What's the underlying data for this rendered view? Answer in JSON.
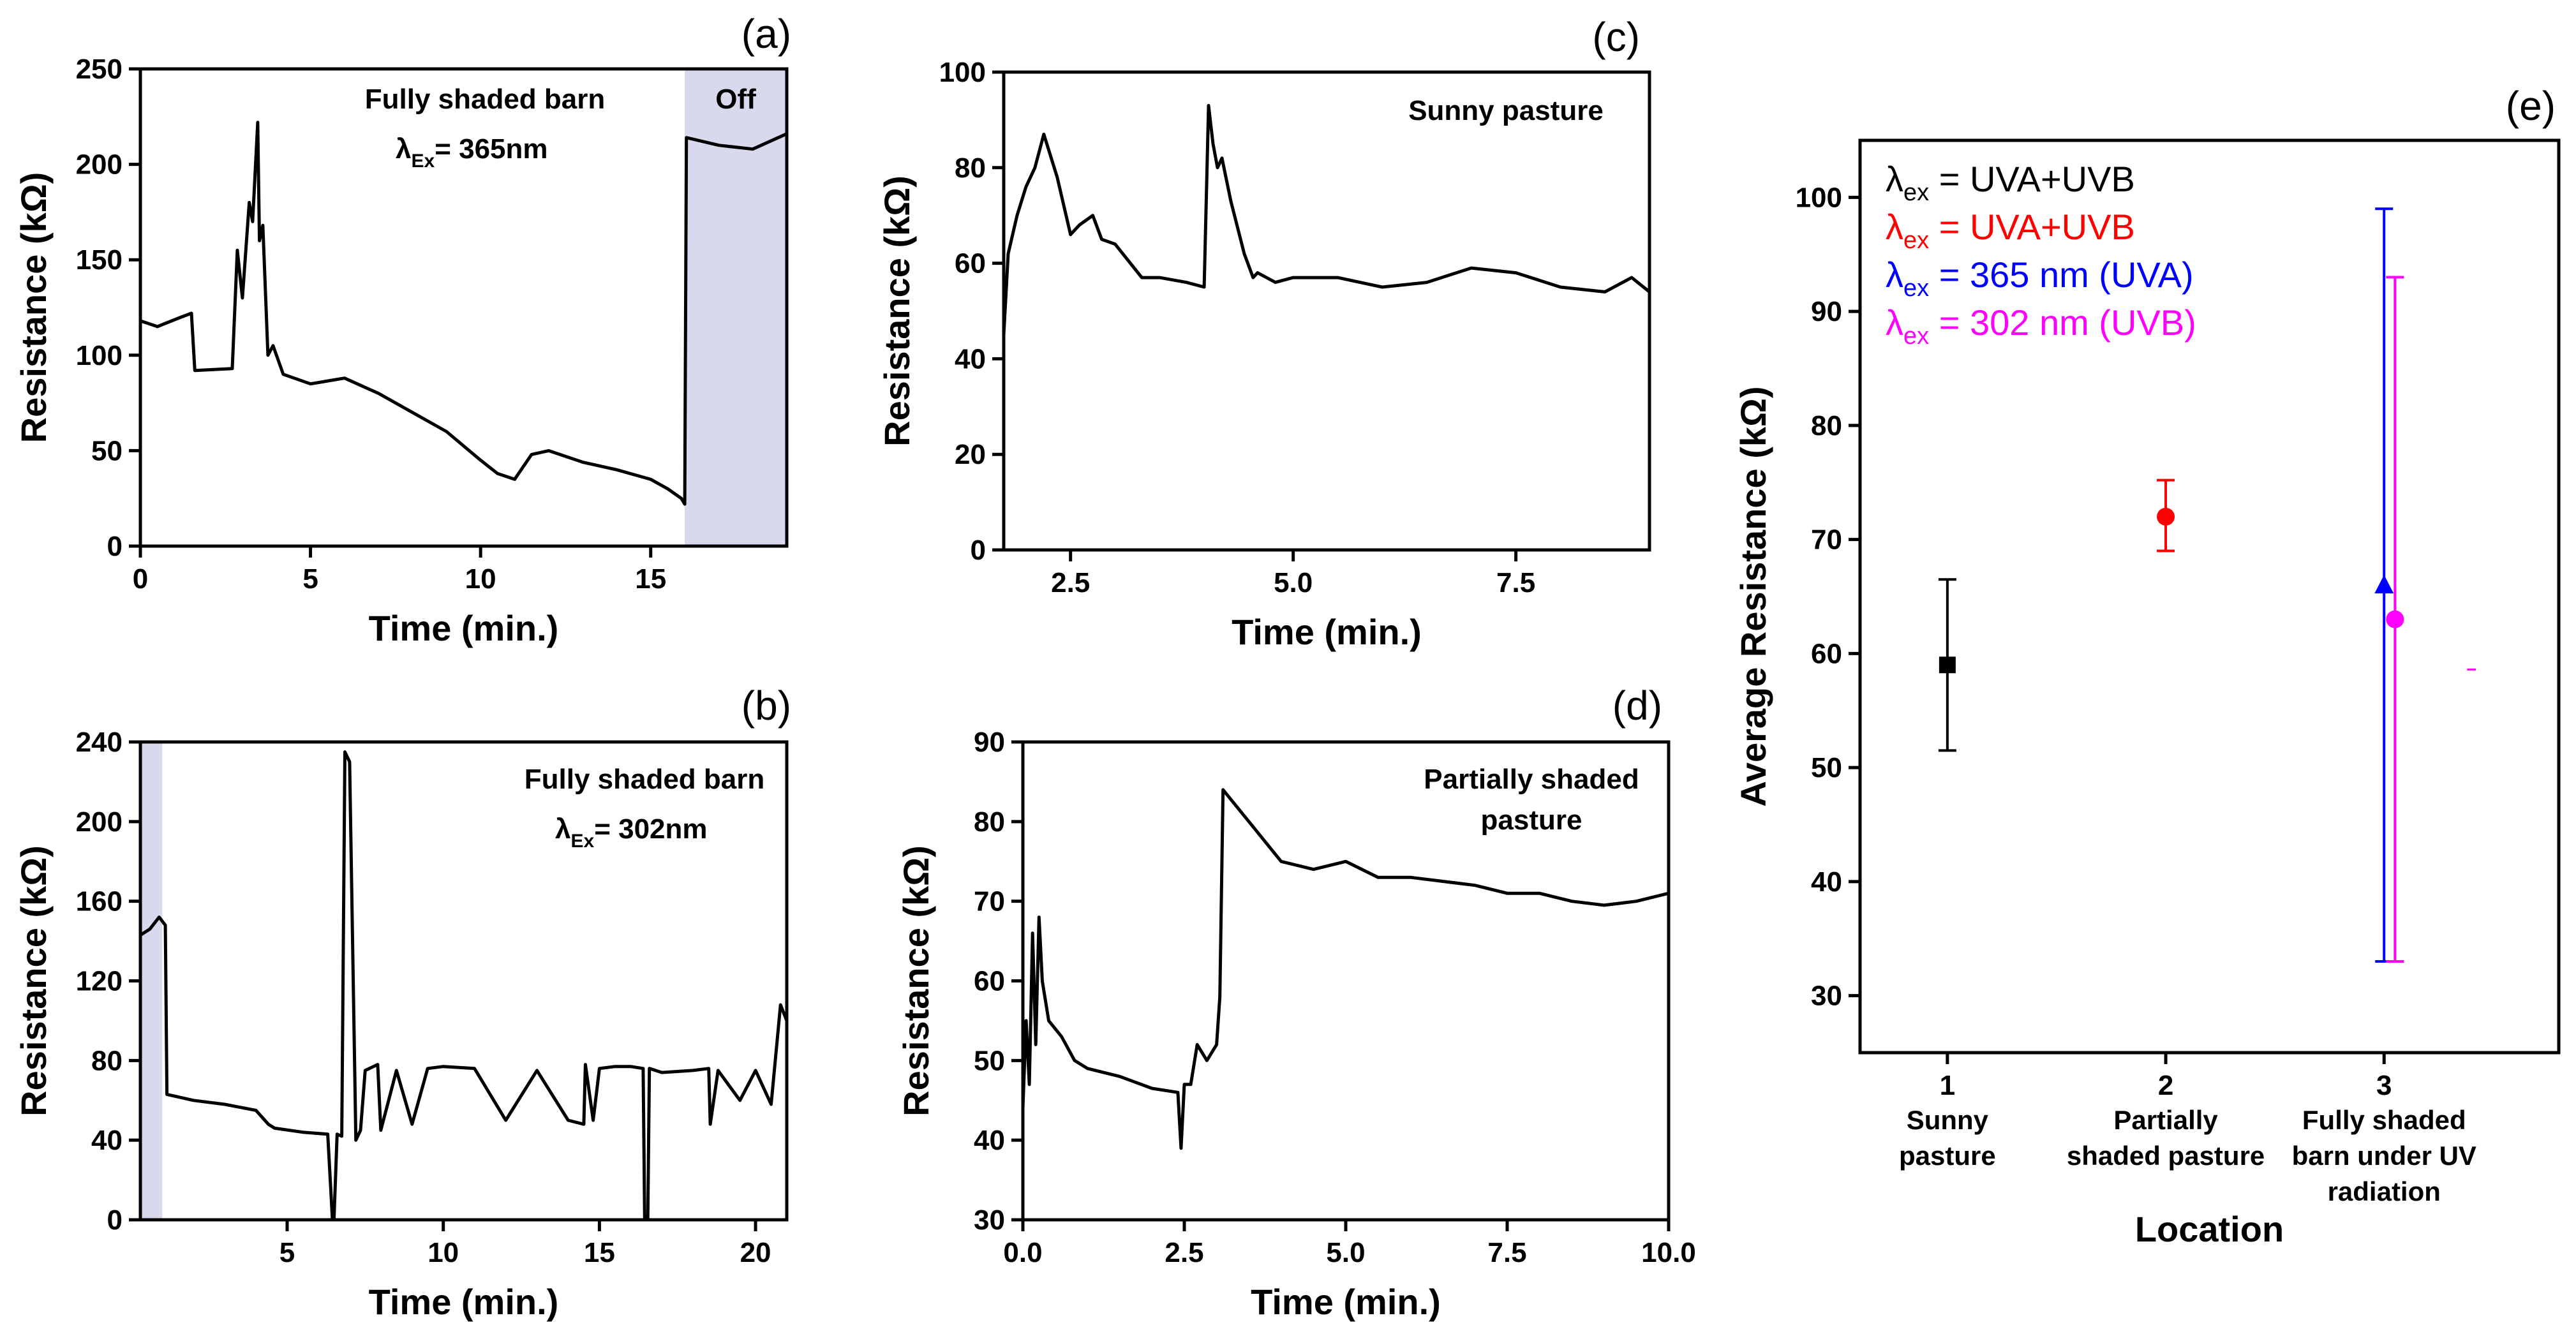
{
  "chart_data": [
    {
      "panel": "(a)",
      "type": "line",
      "xlabel": "Time (min.)",
      "ylabel": "Resistance (kΩ)",
      "xlim": [
        0,
        19
      ],
      "ylim": [
        0,
        250
      ],
      "xticks": [
        "0",
        "5",
        "10",
        "15"
      ],
      "yticks": [
        "0",
        "50",
        "100",
        "150",
        "200",
        "250"
      ],
      "annotation": {
        "title": "Fully shaded barn",
        "lambda": "λ",
        "sub": "Ex",
        "eq": "= 365nm"
      },
      "shaded_region": {
        "x": [
          16,
          19
        ],
        "label": "Off",
        "color": "#d9d9ee"
      },
      "color": "#000000",
      "x": [
        0,
        0.5,
        1.2,
        1.5,
        1.6,
        2.7,
        2.85,
        3.0,
        3.2,
        3.3,
        3.45,
        3.5,
        3.6,
        3.75,
        3.9,
        4.2,
        5.0,
        6.0,
        7.0,
        8.0,
        9.0,
        10.0,
        10.5,
        11.0,
        11.5,
        12.0,
        13.0,
        14.0,
        15.0,
        15.5,
        15.9,
        16.0,
        16.05,
        17.0,
        18.0,
        19.0
      ],
      "y": [
        118,
        115,
        120,
        122,
        92,
        93,
        155,
        130,
        180,
        170,
        222,
        160,
        168,
        100,
        105,
        90,
        85,
        88,
        80,
        70,
        60,
        45,
        38,
        35,
        48,
        50,
        44,
        40,
        35,
        30,
        25,
        22,
        214,
        210,
        208,
        216
      ]
    },
    {
      "panel": "(b)",
      "type": "line",
      "xlabel": "Time (min.)",
      "ylabel": "Resistance (kΩ)",
      "xlim": [
        0.3,
        21
      ],
      "ylim": [
        0,
        240
      ],
      "xticks": [
        "5",
        "10",
        "15",
        "20"
      ],
      "yticks": [
        "0",
        "40",
        "80",
        "120",
        "160",
        "200",
        "240"
      ],
      "annotation": {
        "title": "Fully shaded barn",
        "lambda": "λ",
        "sub": "Ex",
        "eq": "= 302nm"
      },
      "shaded_region": {
        "x": [
          0.3,
          1.0
        ],
        "color": "#d9d9ee"
      },
      "color": "#000000",
      "x": [
        0.3,
        0.6,
        0.9,
        1.1,
        1.15,
        2.0,
        3.0,
        4.0,
        4.4,
        4.6,
        5.5,
        6.3,
        6.45,
        6.5,
        6.6,
        6.75,
        6.85,
        7.0,
        7.2,
        7.35,
        7.5,
        7.9,
        8.0,
        8.5,
        9.0,
        9.5,
        10.0,
        11.0,
        12.0,
        13.0,
        14.0,
        14.5,
        14.55,
        14.8,
        15.0,
        15.5,
        16.0,
        16.4,
        16.45,
        16.55,
        16.6,
        17.0,
        18.0,
        18.5,
        18.55,
        18.8,
        19.5,
        20.0,
        20.5,
        20.8,
        21.0
      ],
      "y": [
        143,
        146,
        152,
        148,
        63,
        60,
        58,
        55,
        48,
        46,
        44,
        43,
        0,
        0,
        43,
        42,
        235,
        230,
        40,
        45,
        75,
        78,
        45,
        75,
        48,
        76,
        77,
        76,
        50,
        75,
        50,
        48,
        78,
        50,
        76,
        77,
        77,
        76,
        0,
        0,
        76,
        74,
        75,
        76,
        48,
        75,
        60,
        75,
        58,
        108,
        100
      ]
    },
    {
      "panel": "(c)",
      "type": "line",
      "xlabel": "Time (min.)",
      "ylabel": "Resistance (kΩ)",
      "xlim": [
        1.75,
        9
      ],
      "ylim": [
        0,
        100
      ],
      "xticks": [
        "2.5",
        "5.0",
        "7.5"
      ],
      "yticks": [
        "0",
        "20",
        "40",
        "60",
        "80",
        "100"
      ],
      "annotation": {
        "title": "Sunny pasture"
      },
      "color": "#000000",
      "x": [
        1.75,
        1.8,
        1.9,
        2.0,
        2.1,
        2.2,
        2.35,
        2.5,
        2.6,
        2.75,
        2.85,
        3.0,
        3.3,
        3.5,
        3.8,
        4.0,
        4.05,
        4.1,
        4.15,
        4.2,
        4.3,
        4.45,
        4.55,
        4.6,
        4.8,
        5.0,
        5.5,
        6.0,
        6.5,
        7.0,
        7.5,
        8.0,
        8.5,
        8.8,
        9.0
      ],
      "y": [
        45,
        62,
        70,
        76,
        80,
        87,
        78,
        66,
        68,
        70,
        65,
        64,
        57,
        57,
        56,
        55,
        93,
        85,
        80,
        82,
        73,
        62,
        57,
        58,
        56,
        57,
        57,
        55,
        56,
        59,
        58,
        55,
        54,
        57,
        54
      ]
    },
    {
      "panel": "(d)",
      "type": "line",
      "xlabel": "Time (min.)",
      "ylabel": "Resistance (kΩ)",
      "xlim": [
        0,
        10
      ],
      "ylim": [
        30,
        90
      ],
      "xticks": [
        "0.0",
        "2.5",
        "5.0",
        "7.5",
        "10.0"
      ],
      "yticks": [
        "30",
        "40",
        "50",
        "60",
        "70",
        "80",
        "90"
      ],
      "annotation": {
        "title": "Partially shaded",
        "title2": "pasture"
      },
      "color": "#000000",
      "x": [
        0,
        0.05,
        0.1,
        0.15,
        0.2,
        0.25,
        0.3,
        0.4,
        0.6,
        0.8,
        1.0,
        1.5,
        2.0,
        2.4,
        2.45,
        2.5,
        2.6,
        2.7,
        2.85,
        3.0,
        3.05,
        3.1,
        3.2,
        3.5,
        4.0,
        4.5,
        5.0,
        5.5,
        6.0,
        7.0,
        7.5,
        8.0,
        8.5,
        9.0,
        9.5,
        10.0
      ],
      "y": [
        44,
        55,
        47,
        66,
        52,
        68,
        60,
        55,
        53,
        50,
        49,
        48,
        46.5,
        46,
        39,
        47,
        47,
        52,
        50,
        52,
        58,
        84,
        83,
        80,
        75,
        74,
        75,
        73,
        73,
        72,
        71,
        71,
        70,
        69.5,
        70,
        71
      ]
    },
    {
      "panel": "(e)",
      "type": "scatter",
      "xlabel": "Location",
      "ylabel": "Average Resistance (kΩ)",
      "xlim": [
        0.6,
        3.8
      ],
      "ylim": [
        25,
        105
      ],
      "xticks": [
        "1",
        "2",
        "3"
      ],
      "yticks": [
        "30",
        "40",
        "50",
        "60",
        "70",
        "80",
        "90",
        "100"
      ],
      "categories": [
        [
          "Sunny",
          "pasture"
        ],
        [
          "Partially",
          "shaded pasture"
        ],
        [
          "Fully shaded",
          "barn under UV",
          "radiation"
        ]
      ],
      "series": [
        {
          "name": "λex = UVA+UVB (Sunny pasture)",
          "x": 1,
          "value": 59,
          "err_low": 51.5,
          "err_high": 66.5,
          "color": "#000000",
          "marker": "square"
        },
        {
          "name": "λex = UVA+UVB (Partially shaded pasture)",
          "x": 2,
          "value": 72,
          "err_low": 69,
          "err_high": 75.2,
          "color": "#ff0000",
          "marker": "circle"
        },
        {
          "name": "λex = 365 nm (UVA)",
          "x": 3.0,
          "value": 66,
          "err_low": 33,
          "err_high": 99,
          "color": "#0000ff",
          "marker": "triangle"
        },
        {
          "name": "λex = 302 nm (UVB)",
          "x": 3.05,
          "value": 63,
          "err_low": 33,
          "err_high": 93,
          "color": "#ff00ff",
          "marker": "circle"
        }
      ],
      "legend": [
        {
          "lambda": "λ",
          "sub": "ex",
          "text": " = UVA+UVB",
          "color": "#000000"
        },
        {
          "lambda": "λ",
          "sub": "ex",
          "text": " = UVA+UVB",
          "color": "#ff0000"
        },
        {
          "lambda": "λ",
          "sub": "ex",
          "text": " = 365 nm (UVA)",
          "color": "#0000ff"
        },
        {
          "lambda": "λ",
          "sub": "ex",
          "text": " = 302 nm (UVB)",
          "color": "#ff00ff"
        }
      ]
    }
  ]
}
